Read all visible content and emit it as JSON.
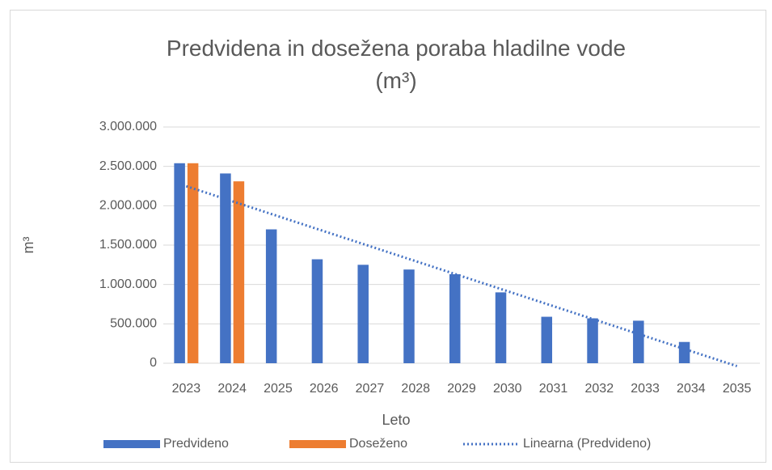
{
  "chart_data": {
    "type": "bar",
    "title": "Predvidena in dosežena poraba hladilne vode (m³)",
    "x_label": "Leto",
    "y_label": "m³",
    "categories": [
      "2023",
      "2024",
      "2025",
      "2026",
      "2027",
      "2028",
      "2029",
      "2030",
      "2031",
      "2032",
      "2033",
      "2034",
      "2035"
    ],
    "series": [
      {
        "name": "Predvideno",
        "color": "#4472c4",
        "values": [
          2540000,
          2410000,
          1700000,
          1320000,
          1250000,
          1190000,
          1130000,
          900000,
          590000,
          570000,
          540000,
          270000,
          null
        ]
      },
      {
        "name": "Doseženo",
        "color": "#ed7d31",
        "values": [
          2540000,
          2310000,
          null,
          null,
          null,
          null,
          null,
          null,
          null,
          null,
          null,
          null,
          null
        ]
      }
    ],
    "trendline": {
      "name": "Linearna (Predvideno)",
      "kind": "linear",
      "series": 0,
      "color": "#4472c4"
    },
    "ylim": [
      0,
      3000000
    ],
    "yticks": [
      0,
      {
        "value": 500000,
        "label": "500.000"
      },
      {
        "value": 1000000,
        "label": "1.000.000"
      },
      {
        "value": 1500000,
        "label": "1.500.000"
      },
      {
        "value": 2000000,
        "label": "2.000.000"
      },
      {
        "value": 2500000,
        "label": "2.500.000"
      },
      {
        "value": 3000000,
        "label": "3.000.000"
      }
    ],
    "grid": true,
    "legend": "bottom"
  }
}
